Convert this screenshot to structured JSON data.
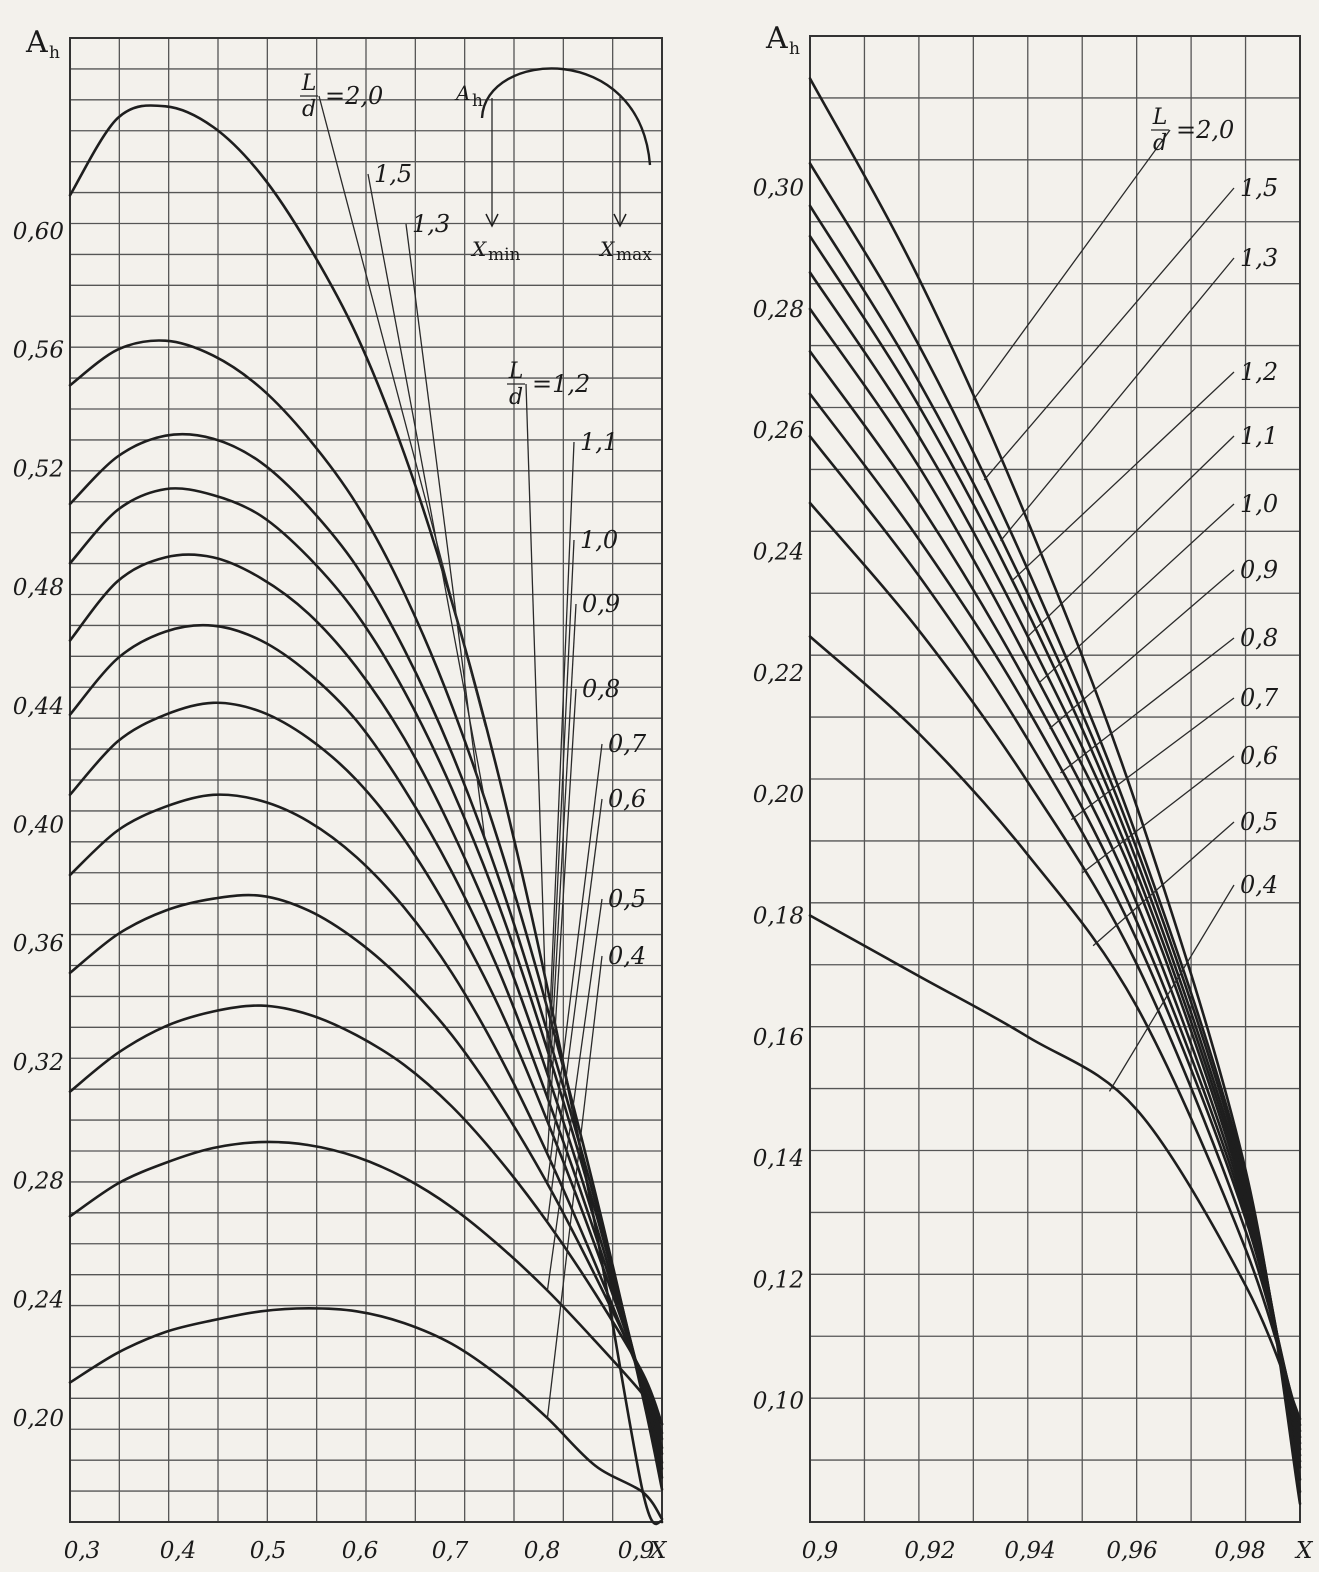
{
  "chart_data": [
    {
      "type": "line",
      "ylabel_main": "A",
      "ylabel_sub": "h",
      "xlabel": "X",
      "xlim": [
        0.3,
        0.92
      ],
      "ylim": [
        0.165,
        0.665
      ],
      "x_tick_labels": [
        "0,3",
        "0,4",
        "0,5",
        "0,6",
        "0,7",
        "0,8",
        "0,9"
      ],
      "x_tick_values": [
        0.3,
        0.4,
        0.5,
        0.6,
        0.7,
        0.8,
        0.9
      ],
      "y_tick_labels": [
        "0,20",
        "0,24",
        "0,28",
        "0,32",
        "0,36",
        "0,40",
        "0,44",
        "0,48",
        "0,52",
        "0,56",
        "0,60"
      ],
      "y_tick_values": [
        0.2,
        0.24,
        0.28,
        0.32,
        0.36,
        0.4,
        0.44,
        0.48,
        0.52,
        0.56,
        0.6
      ],
      "legend_header": {
        "numerator": "L",
        "denominator": "d"
      },
      "inset": {
        "label_main": "A",
        "label_sub": "h",
        "xmin_main": "X",
        "xmin_sub": "min",
        "xmax_main": "X",
        "xmax_sub": "max"
      },
      "series": [
        {
          "name": "2,0",
          "label": "=2,0",
          "x": [
            0.3,
            0.35,
            0.4,
            0.45,
            0.5,
            0.55,
            0.6,
            0.65,
            0.7,
            0.75,
            0.8,
            0.85,
            0.9,
            0.92
          ],
          "y": [
            0.612,
            0.638,
            0.642,
            0.635,
            0.619,
            0.595,
            0.565,
            0.525,
            0.475,
            0.415,
            0.345,
            0.265,
            0.175,
            0.165
          ]
        },
        {
          "name": "1,5",
          "label": "1,5",
          "x": [
            0.3,
            0.35,
            0.4,
            0.45,
            0.5,
            0.55,
            0.6,
            0.65,
            0.7,
            0.75,
            0.8,
            0.85,
            0.9,
            0.92
          ],
          "y": [
            0.548,
            0.56,
            0.563,
            0.558,
            0.547,
            0.53,
            0.508,
            0.478,
            0.44,
            0.393,
            0.338,
            0.276,
            0.207,
            0.176
          ]
        },
        {
          "name": "1,3",
          "label": "1,3",
          "x": [
            0.3,
            0.35,
            0.4,
            0.45,
            0.5,
            0.55,
            0.6,
            0.65,
            0.7,
            0.75,
            0.8,
            0.85,
            0.9,
            0.92
          ],
          "y": [
            0.508,
            0.524,
            0.531,
            0.53,
            0.522,
            0.507,
            0.487,
            0.459,
            0.424,
            0.381,
            0.33,
            0.273,
            0.209,
            0.18
          ]
        },
        {
          "name": "1,2",
          "label": "=1,2",
          "x": [
            0.3,
            0.35,
            0.4,
            0.45,
            0.5,
            0.55,
            0.6,
            0.65,
            0.7,
            0.75,
            0.8,
            0.85,
            0.9,
            0.92
          ],
          "y": [
            0.488,
            0.506,
            0.513,
            0.511,
            0.504,
            0.49,
            0.471,
            0.445,
            0.412,
            0.372,
            0.324,
            0.27,
            0.21,
            0.183
          ]
        },
        {
          "name": "1,1",
          "label": "1,1",
          "x": [
            0.3,
            0.35,
            0.4,
            0.45,
            0.5,
            0.55,
            0.6,
            0.65,
            0.7,
            0.75,
            0.8,
            0.85,
            0.9,
            0.92
          ],
          "y": [
            0.462,
            0.482,
            0.49,
            0.49,
            0.483,
            0.471,
            0.453,
            0.429,
            0.398,
            0.361,
            0.316,
            0.266,
            0.21,
            0.185
          ]
        },
        {
          "name": "1,0",
          "label": "1,0",
          "x": [
            0.3,
            0.35,
            0.4,
            0.45,
            0.5,
            0.55,
            0.6,
            0.65,
            0.7,
            0.75,
            0.8,
            0.85,
            0.9,
            0.92
          ],
          "y": [
            0.437,
            0.456,
            0.465,
            0.467,
            0.462,
            0.451,
            0.435,
            0.412,
            0.384,
            0.35,
            0.308,
            0.262,
            0.211,
            0.188
          ]
        },
        {
          "name": "0,9",
          "label": "0,9",
          "x": [
            0.3,
            0.35,
            0.4,
            0.45,
            0.5,
            0.55,
            0.6,
            0.65,
            0.7,
            0.75,
            0.8,
            0.85,
            0.9,
            0.92
          ],
          "y": [
            0.41,
            0.428,
            0.437,
            0.441,
            0.438,
            0.429,
            0.415,
            0.395,
            0.369,
            0.338,
            0.3,
            0.258,
            0.212,
            0.19
          ]
        },
        {
          "name": "0,8",
          "label": "0,8",
          "x": [
            0.3,
            0.35,
            0.4,
            0.45,
            0.5,
            0.55,
            0.6,
            0.65,
            0.7,
            0.75,
            0.8,
            0.85,
            0.9,
            0.92
          ],
          "y": [
            0.383,
            0.398,
            0.406,
            0.41,
            0.408,
            0.401,
            0.389,
            0.372,
            0.35,
            0.322,
            0.289,
            0.252,
            0.212,
            0.193
          ]
        },
        {
          "name": "0,7",
          "label": "0,7",
          "x": [
            0.3,
            0.35,
            0.4,
            0.45,
            0.5,
            0.55,
            0.6,
            0.65,
            0.7,
            0.75,
            0.8,
            0.85,
            0.9,
            0.92
          ],
          "y": [
            0.35,
            0.363,
            0.371,
            0.375,
            0.376,
            0.371,
            0.361,
            0.347,
            0.329,
            0.306,
            0.279,
            0.248,
            0.214,
            0.195
          ]
        },
        {
          "name": "0,6",
          "label": "0,6",
          "x": [
            0.3,
            0.35,
            0.4,
            0.45,
            0.5,
            0.55,
            0.6,
            0.65,
            0.7,
            0.75,
            0.8,
            0.85,
            0.9,
            0.92
          ],
          "y": [
            0.31,
            0.323,
            0.332,
            0.337,
            0.339,
            0.336,
            0.329,
            0.319,
            0.305,
            0.287,
            0.266,
            0.242,
            0.215,
            0.198
          ]
        },
        {
          "name": "0,5",
          "label": "0,5",
          "x": [
            0.3,
            0.35,
            0.4,
            0.45,
            0.5,
            0.55,
            0.6,
            0.65,
            0.7,
            0.75,
            0.8,
            0.85,
            0.9,
            0.92
          ],
          "y": [
            0.268,
            0.279,
            0.286,
            0.291,
            0.293,
            0.292,
            0.288,
            0.281,
            0.271,
            0.258,
            0.243,
            0.226,
            0.208,
            0.198
          ]
        },
        {
          "name": "0,4",
          "label": "0,4",
          "x": [
            0.3,
            0.35,
            0.4,
            0.45,
            0.5,
            0.55,
            0.6,
            0.65,
            0.7,
            0.75,
            0.8,
            0.85,
            0.9,
            0.92
          ],
          "y": [
            0.212,
            0.222,
            0.229,
            0.233,
            0.236,
            0.237,
            0.236,
            0.232,
            0.225,
            0.214,
            0.2,
            0.184,
            0.175,
            0.166
          ]
        }
      ]
    },
    {
      "type": "line",
      "ylabel_main": "A",
      "ylabel_sub": "h",
      "xlabel": "X",
      "xlim": [
        0.9,
        0.99
      ],
      "ylim": [
        0.08,
        0.325
      ],
      "x_tick_labels": [
        "0,9",
        "0,92",
        "0,94",
        "0,96",
        "0,98"
      ],
      "x_tick_values": [
        0.9,
        0.92,
        0.94,
        0.96,
        0.98
      ],
      "y_tick_labels": [
        "0,10",
        "0,12",
        "0,14",
        "0,16",
        "0,18",
        "0,20",
        "0,22",
        "0,24",
        "0,26",
        "0,28",
        "0,30"
      ],
      "y_tick_values": [
        0.1,
        0.12,
        0.14,
        0.16,
        0.18,
        0.2,
        0.22,
        0.24,
        0.26,
        0.28,
        0.3
      ],
      "legend_header": {
        "numerator": "L",
        "denominator": "d"
      },
      "series": [
        {
          "name": "2,0",
          "label": "=2,0",
          "x": [
            0.9,
            0.92,
            0.94,
            0.96,
            0.98,
            0.99
          ],
          "y": [
            0.318,
            0.285,
            0.245,
            0.198,
            0.138,
            0.083
          ]
        },
        {
          "name": "1,5",
          "label": "1,5",
          "x": [
            0.9,
            0.92,
            0.94,
            0.96,
            0.98,
            0.99
          ],
          "y": [
            0.304,
            0.274,
            0.237,
            0.193,
            0.137,
            0.085
          ]
        },
        {
          "name": "1,3",
          "label": "1,3",
          "x": [
            0.9,
            0.92,
            0.94,
            0.96,
            0.98,
            0.99
          ],
          "y": [
            0.297,
            0.268,
            0.233,
            0.191,
            0.136,
            0.087
          ]
        },
        {
          "name": "1,2",
          "label": "1,2",
          "x": [
            0.9,
            0.92,
            0.94,
            0.96,
            0.98,
            0.99
          ],
          "y": [
            0.292,
            0.264,
            0.23,
            0.189,
            0.135,
            0.089
          ]
        },
        {
          "name": "1,1",
          "label": "1,1",
          "x": [
            0.9,
            0.92,
            0.94,
            0.96,
            0.98,
            0.99
          ],
          "y": [
            0.286,
            0.259,
            0.226,
            0.187,
            0.134,
            0.09
          ]
        },
        {
          "name": "1,0",
          "label": "1,0",
          "x": [
            0.9,
            0.92,
            0.94,
            0.96,
            0.98,
            0.99
          ],
          "y": [
            0.28,
            0.254,
            0.222,
            0.185,
            0.133,
            0.091
          ]
        },
        {
          "name": "0,9",
          "label": "0,9",
          "x": [
            0.9,
            0.92,
            0.94,
            0.96,
            0.98,
            0.99
          ],
          "y": [
            0.273,
            0.248,
            0.218,
            0.182,
            0.132,
            0.092
          ]
        },
        {
          "name": "0,8",
          "label": "0,8",
          "x": [
            0.9,
            0.92,
            0.94,
            0.96,
            0.98,
            0.99
          ],
          "y": [
            0.266,
            0.242,
            0.214,
            0.179,
            0.131,
            0.093
          ]
        },
        {
          "name": "0,7",
          "label": "0,7",
          "x": [
            0.9,
            0.92,
            0.94,
            0.96,
            0.98,
            0.99
          ],
          "y": [
            0.259,
            0.236,
            0.209,
            0.176,
            0.13,
            0.094
          ]
        },
        {
          "name": "0,6",
          "label": "0,6",
          "x": [
            0.9,
            0.92,
            0.94,
            0.96,
            0.98,
            0.99
          ],
          "y": [
            0.248,
            0.227,
            0.202,
            0.172,
            0.128,
            0.095
          ]
        },
        {
          "name": "0,5",
          "label": "0,5",
          "x": [
            0.9,
            0.92,
            0.94,
            0.96,
            0.98,
            0.99
          ],
          "y": [
            0.226,
            0.21,
            0.19,
            0.165,
            0.125,
            0.096
          ]
        },
        {
          "name": "0,4",
          "label": "0,4",
          "x": [
            0.9,
            0.92,
            0.94,
            0.96,
            0.98,
            0.99
          ],
          "y": [
            0.18,
            0.17,
            0.16,
            0.148,
            0.119,
            0.097
          ]
        }
      ]
    }
  ]
}
